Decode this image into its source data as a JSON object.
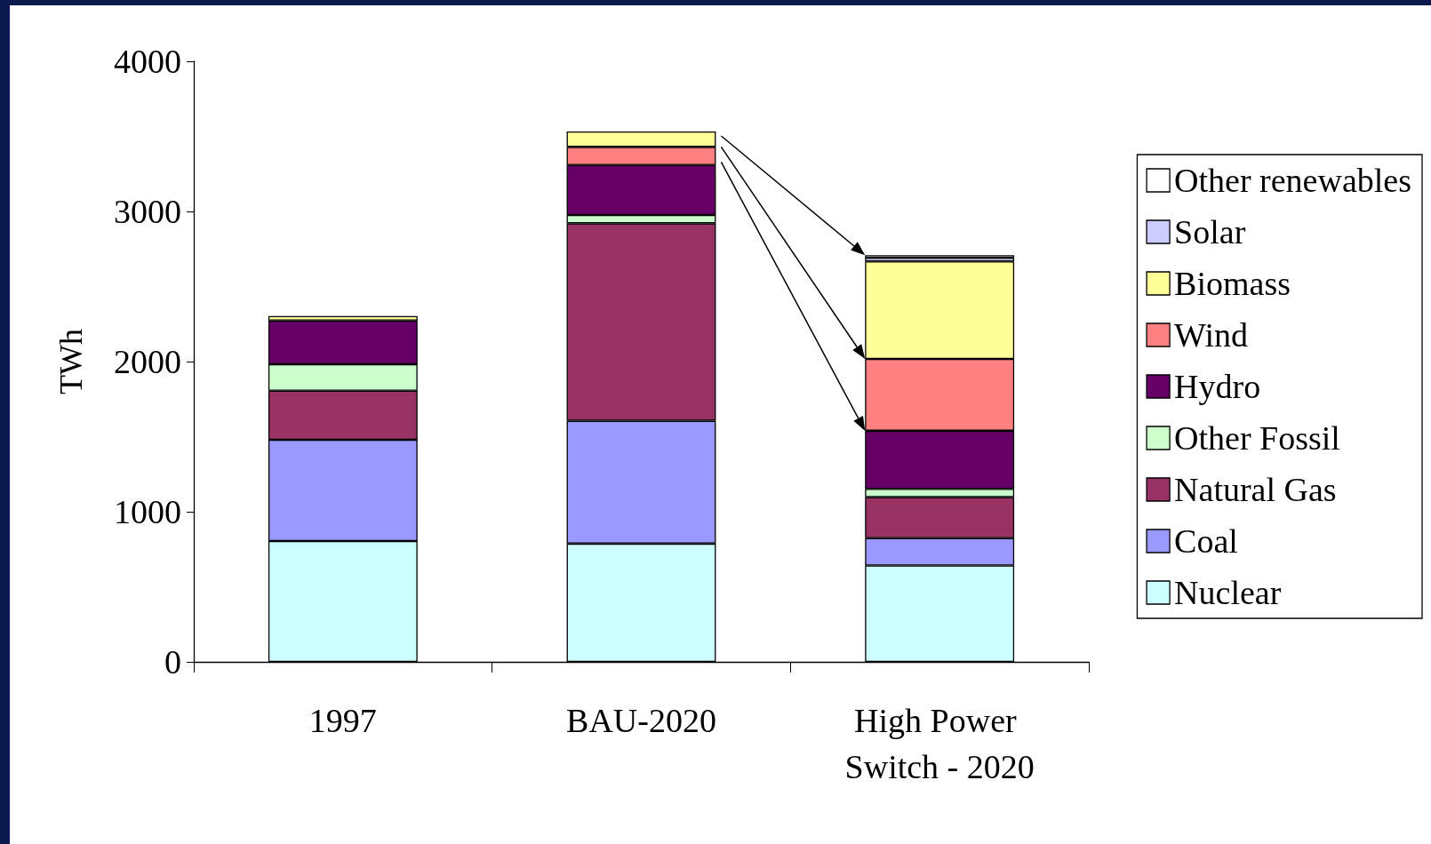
{
  "chart_data": {
    "type": "bar",
    "stacked": true,
    "ylabel": "TWh",
    "categories": [
      "1997",
      "BAU-2020",
      "High Power Switch - 2020"
    ],
    "ylim": [
      0,
      4000
    ],
    "yticks": [
      0,
      1000,
      2000,
      3000,
      4000
    ],
    "grid": false,
    "legend": "right",
    "series": [
      {
        "name": "Nuclear",
        "color": "#ccffff",
        "values": [
          805,
          788,
          642
        ]
      },
      {
        "name": "Coal",
        "color": "#9999ff",
        "values": [
          674,
          818,
          182
        ]
      },
      {
        "name": "Natural Gas",
        "color": "#993366",
        "values": [
          327,
          1315,
          273
        ]
      },
      {
        "name": "Other Fossil",
        "color": "#ccffcc",
        "values": [
          176,
          55,
          55
        ]
      },
      {
        "name": "Hydro",
        "color": "#660066",
        "values": [
          291,
          333,
          387
        ]
      },
      {
        "name": "Wind",
        "color": "#ff8080",
        "values": [
          null,
          121,
          479
        ]
      },
      {
        "name": "Biomass",
        "color": "#ffff99",
        "values": [
          30,
          103,
          649
        ]
      },
      {
        "name": "Solar",
        "color": "#ccccff",
        "values": [
          null,
          null,
          24
        ]
      },
      {
        "name": "Other renewables",
        "color": "#ffffff",
        "values": [
          null,
          null,
          18
        ]
      }
    ]
  }
}
